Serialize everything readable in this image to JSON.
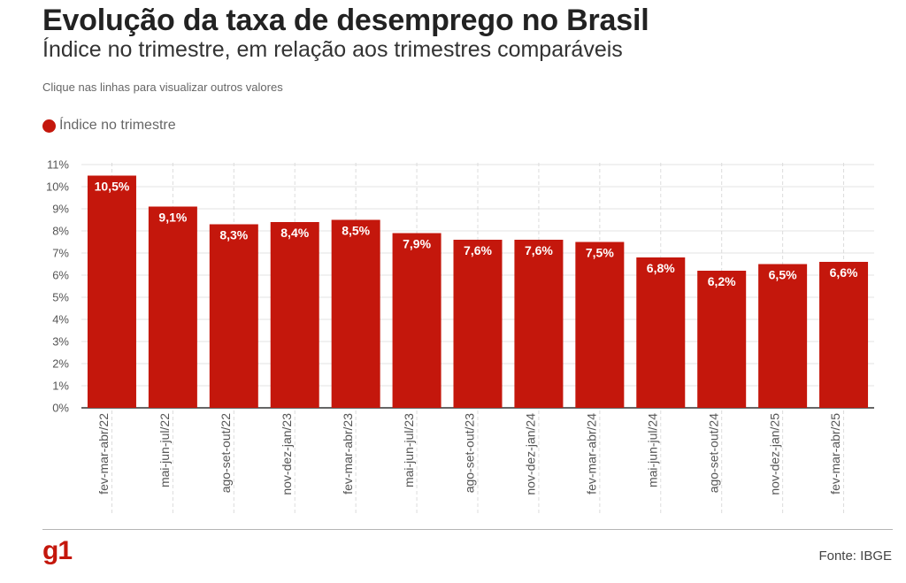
{
  "header": {
    "title": "Evolução da taxa de desemprego no Brasil",
    "subtitle": "Índice no trimestre, em relação aos trimestres comparáveis",
    "instruction": "Clique nas linhas para visualizar outros valores"
  },
  "legend": {
    "label": "Índice no trimestre",
    "color": "#c4170c"
  },
  "footer": {
    "logo": "g1",
    "source": "Fonte: IBGE"
  },
  "chart_data": {
    "type": "bar",
    "categories": [
      "fev-mar-abr/22",
      "mai-jun-jul/22",
      "ago-set-out/22",
      "nov-dez-jan/23",
      "fev-mar-abr/23",
      "mai-jun-jul/23",
      "ago-set-out/23",
      "nov-dez-jan/24",
      "fev-mar-abr/24",
      "mai-jun-jul/24",
      "ago-set-out/24",
      "nov-dez-jan/25",
      "fev-mar-abr/25"
    ],
    "series": [
      {
        "name": "Índice no trimestre",
        "values": [
          10.5,
          9.1,
          8.3,
          8.4,
          8.5,
          7.9,
          7.6,
          7.6,
          7.5,
          6.8,
          6.2,
          6.5,
          6.6
        ],
        "labels": [
          "10,5%",
          "9,1%",
          "8,3%",
          "8,4%",
          "8,5%",
          "7,9%",
          "7,6%",
          "7,6%",
          "7,5%",
          "6,8%",
          "6,2%",
          "6,5%",
          "6,6%"
        ]
      }
    ],
    "ylim": [
      0,
      11
    ],
    "yticks": [
      "0%",
      "1%",
      "2%",
      "3%",
      "4%",
      "5%",
      "6%",
      "7%",
      "8%",
      "9%",
      "10%",
      "11%"
    ],
    "grid": true,
    "legend_position": "top-left",
    "bar_color": "#c4170c"
  }
}
